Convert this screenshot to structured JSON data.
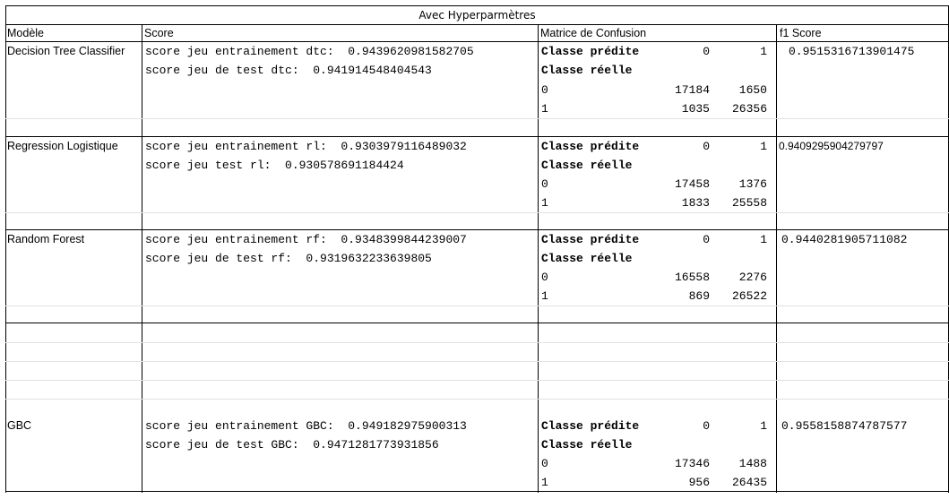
{
  "title": "Avec Hyperparmètres",
  "headers": {
    "model": "Modèle",
    "score": "Score",
    "matrix": "Matrice de Confusion",
    "f1": "f1 Score"
  },
  "matrix_labels": {
    "predicted": "Classe prédite",
    "actual": "Classe réelle",
    "col0": "0",
    "col1": "1",
    "row0": "0",
    "row1": "1"
  },
  "rows": [
    {
      "model": "Decision Tree Classifier",
      "score_train": "score jeu entrainement dtc:  0.9439620981582705",
      "score_test": "score jeu de test dtc:  0.941914548404543",
      "cm": {
        "r0c0": "17184",
        "r0c1": "1650",
        "r1c0": "1035",
        "r1c1": "26356"
      },
      "f1": "0.9515316713901475"
    },
    {
      "model": "Regression Logistique",
      "score_train": "score jeu entrainement rl:  0.9303979116489032",
      "score_test": "score jeu test rl:  0.930578691184424",
      "cm": {
        "r0c0": "17458",
        "r0c1": "1376",
        "r1c0": "1833",
        "r1c1": "25558"
      },
      "f1": "0.9409295904279797"
    },
    {
      "model": "Random Forest",
      "score_train": "score jeu entrainement rf:  0.9348399844239007",
      "score_test": "score jeu de test rf:  0.9319632233639805",
      "cm": {
        "r0c0": "16558",
        "r0c1": "2276",
        "r1c0": "869",
        "r1c1": "26522"
      },
      "f1": "0.9440281905711082"
    },
    {
      "model": "GBC",
      "score_train": "score jeu entrainement GBC:  0.949182975900313",
      "score_test": "score jeu de test GBC:  0.9471281773931856",
      "cm": {
        "r0c0": "17346",
        "r0c1": "1488",
        "r1c0": "956",
        "r1c1": "26435"
      },
      "f1": "0.9558158874787577"
    }
  ]
}
